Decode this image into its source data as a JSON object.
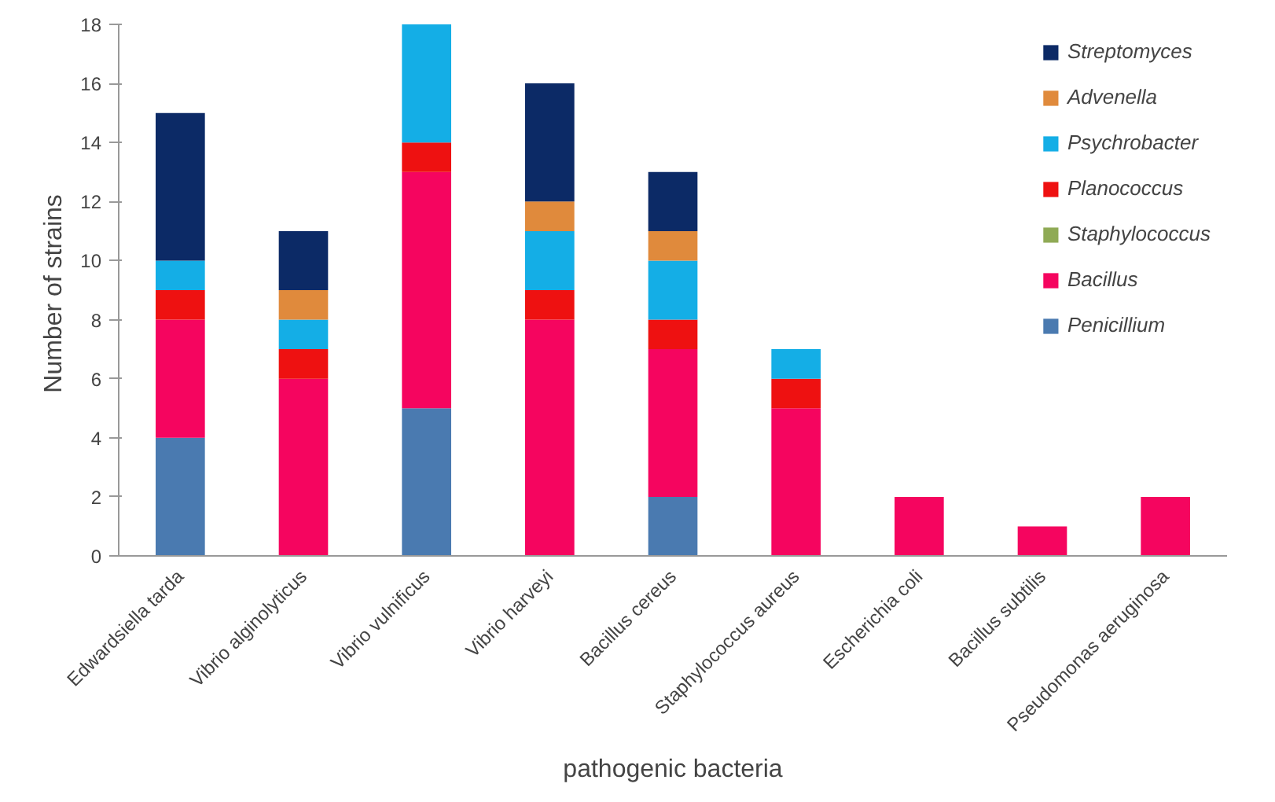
{
  "chart_data": {
    "type": "bar",
    "stacked": true,
    "xlabel": "pathogenic bacteria",
    "ylabel": "Number of  strains",
    "categories": [
      "Edwardsiella tarda",
      "Vibrio alginolyticus",
      "Vibrio vulnificus",
      "Vibrio harveyi",
      "Bacillus cereus",
      "Staphylococcus aureus",
      "Escherichia coli",
      "Bacillus subtilis",
      "Pseudomonas aeruginosa"
    ],
    "series": [
      {
        "name": "Penicillium",
        "color": "#4a7ab0",
        "values": [
          4,
          0,
          5,
          0,
          2,
          0,
          0,
          0,
          0
        ]
      },
      {
        "name": "Bacillus",
        "color": "#f5055f",
        "values": [
          4,
          6,
          8,
          8,
          5,
          5,
          2,
          1,
          2
        ]
      },
      {
        "name": "Staphylococcus",
        "color": "#8faa55",
        "values": [
          0,
          0,
          0,
          0,
          0,
          0,
          0,
          0,
          0
        ]
      },
      {
        "name": "Planococcus",
        "color": "#ee1111",
        "values": [
          1,
          1,
          1,
          1,
          1,
          1,
          0,
          0,
          0
        ]
      },
      {
        "name": "Psychrobacter",
        "color": "#14aee6",
        "values": [
          1,
          1,
          4,
          2,
          2,
          1,
          0,
          0,
          0
        ]
      },
      {
        "name": "Advenella",
        "color": "#e08a3c",
        "values": [
          0,
          1,
          0,
          1,
          1,
          0,
          0,
          0,
          0
        ]
      },
      {
        "name": "Streptomyces",
        "color": "#0c2a66",
        "values": [
          5,
          2,
          0,
          4,
          2,
          0,
          0,
          0,
          0
        ]
      }
    ],
    "ylim": [
      0,
      18
    ],
    "yticks": [
      0,
      2,
      4,
      6,
      8,
      10,
      12,
      14,
      16,
      18
    ],
    "grid": false,
    "legend": "top right"
  }
}
